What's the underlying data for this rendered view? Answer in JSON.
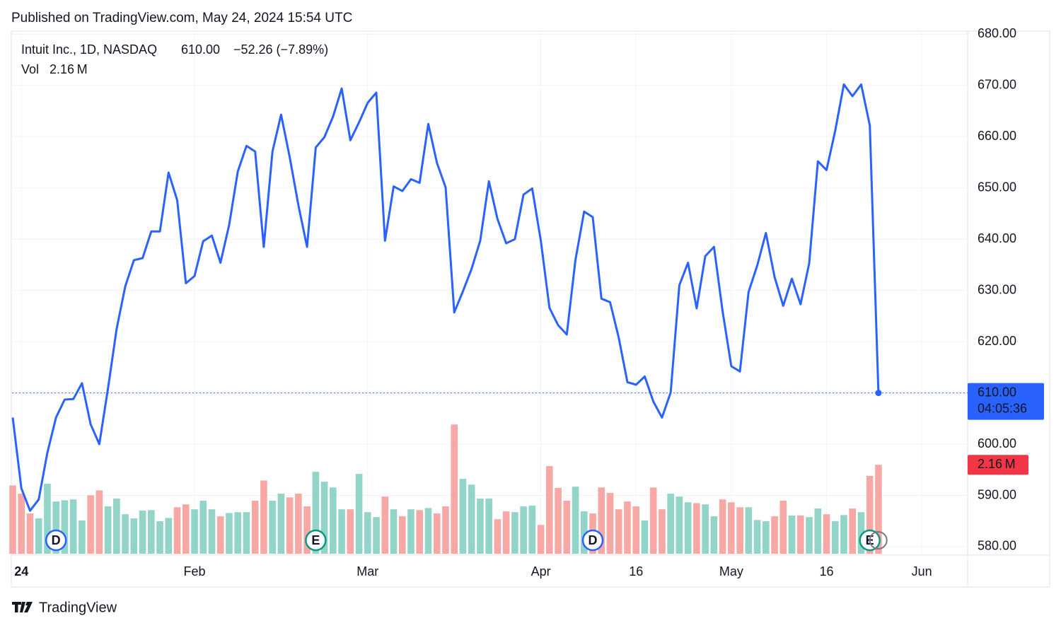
{
  "chart_data": {
    "type": "line",
    "published": "Published on TradingView.com, May 24, 2024 15:54 UTC",
    "symbol": "Intuit Inc., 1D, NASDAQ",
    "price": {
      "value": 610,
      "label": "610.00"
    },
    "change": "−52.26 (−7.89%)",
    "countdown": "04:05:36",
    "brand": "TradingView",
    "series": [
      {
        "name": "Intuit Inc.",
        "color": "#2962ff",
        "values": [
          605.2,
          591.4,
          587.0,
          589.2,
          598.3,
          605.2,
          608.7,
          608.8,
          611.9,
          603.9,
          600.0,
          610.8,
          622.5,
          630.8,
          635.9,
          636.3,
          641.5,
          641.5,
          653.0,
          647.6,
          631.4,
          632.8,
          639.6,
          640.7,
          635.4,
          642.8,
          653.2,
          658.2,
          657.1,
          638.5,
          657.1,
          664.3,
          656.0,
          646.6,
          638.5,
          657.9,
          659.9,
          663.9,
          669.4,
          659.3,
          662.8,
          666.6,
          668.6,
          639.7,
          650.3,
          649.4,
          651.7,
          651.0,
          662.5,
          654.9,
          650.1,
          625.7,
          629.8,
          634.2,
          639.7,
          651.3,
          643.9,
          639.2,
          640.0,
          648.7,
          649.9,
          639.7,
          626.6,
          623.2,
          621.4,
          635.9,
          645.4,
          644.3,
          628.4,
          627.7,
          620.8,
          612.1,
          611.6,
          613.2,
          608.3,
          605.2,
          610.1,
          631.0,
          635.4,
          626.5,
          636.7,
          638.5,
          625.9,
          615.2,
          614.2,
          629.7,
          634.9,
          641.2,
          632.6,
          627.0,
          632.3,
          627.3,
          635.3,
          655.2,
          653.5,
          661.1,
          670.2,
          667.9,
          670.2,
          662.2,
          610.0
        ]
      }
    ],
    "volume": {
      "name": "Vol",
      "up_color": "#92d4c8",
      "down_color": "#f7a8a5",
      "label_color": "#f23645",
      "ylim": [
        0,
        12.7
      ],
      "last_label": "2.16 M",
      "values": [
        1.66,
        1.46,
        0.98,
        0.86,
        1.7,
        1.27,
        1.3,
        1.32,
        0.81,
        1.42,
        1.54,
        1.15,
        1.34,
        0.96,
        0.86,
        1.05,
        1.06,
        0.79,
        0.87,
        1.13,
        1.2,
        1.08,
        1.29,
        1.08,
        0.91,
        0.99,
        1.01,
        1.01,
        1.29,
        1.78,
        1.29,
        1.46,
        1.37,
        1.46,
        1.15,
        1.99,
        1.75,
        1.61,
        1.08,
        1.08,
        1.94,
        1.01,
        0.89,
        1.39,
        1.08,
        0.91,
        1.08,
        1.06,
        1.11,
        0.98,
        1.15,
        3.14,
        1.82,
        1.68,
        1.34,
        1.34,
        0.84,
        1.03,
        1.01,
        1.15,
        1.17,
        0.7,
        2.13,
        1.6,
        1.29,
        1.63,
        1.03,
        0.98,
        1.61,
        1.48,
        1.08,
        1.27,
        1.15,
        0.81,
        1.61,
        1.08,
        1.46,
        1.39,
        1.25,
        1.23,
        1.2,
        0.91,
        1.32,
        1.25,
        1.13,
        1.13,
        0.82,
        0.79,
        0.91,
        1.29,
        0.93,
        0.93,
        0.89,
        1.1,
        0.96,
        0.79,
        0.94,
        1.1,
        1.01,
        1.89,
        2.16
      ]
    },
    "events": [
      {
        "label": "D",
        "x": 5,
        "color": "#2962ff"
      },
      {
        "label": "E",
        "x": 35,
        "color": "#089981"
      },
      {
        "label": "D",
        "x": 67,
        "color": "#2962ff"
      },
      {
        "label": "E",
        "x": 99,
        "color": "#089981"
      }
    ],
    "xlim": [
      -0.08,
      110.3
    ],
    "xticks": [
      {
        "value": 1,
        "label": "24"
      },
      {
        "value": 21,
        "label": "Feb"
      },
      {
        "value": 41,
        "label": "Mar"
      },
      {
        "value": 61,
        "label": "Apr"
      },
      {
        "value": 72,
        "label": "16"
      },
      {
        "value": 83,
        "label": "May"
      },
      {
        "value": 94,
        "label": "16"
      },
      {
        "value": 105,
        "label": "Jun"
      }
    ],
    "ylim": [
      578.34,
      680.6
    ],
    "yticks": [
      {
        "value": 580,
        "label": "580.00"
      },
      {
        "value": 590,
        "label": "590.00"
      },
      {
        "value": 600,
        "label": "600.00"
      },
      {
        "value": 610,
        "label": "610.00"
      },
      {
        "value": 620,
        "label": "620.00"
      },
      {
        "value": 630,
        "label": "630.00"
      },
      {
        "value": 640,
        "label": "640.00"
      },
      {
        "value": 650,
        "label": "650.00"
      },
      {
        "value": 660,
        "label": "660.00"
      },
      {
        "value": 670,
        "label": "670.00"
      },
      {
        "value": 680,
        "label": "680.00"
      }
    ],
    "grid": true
  }
}
